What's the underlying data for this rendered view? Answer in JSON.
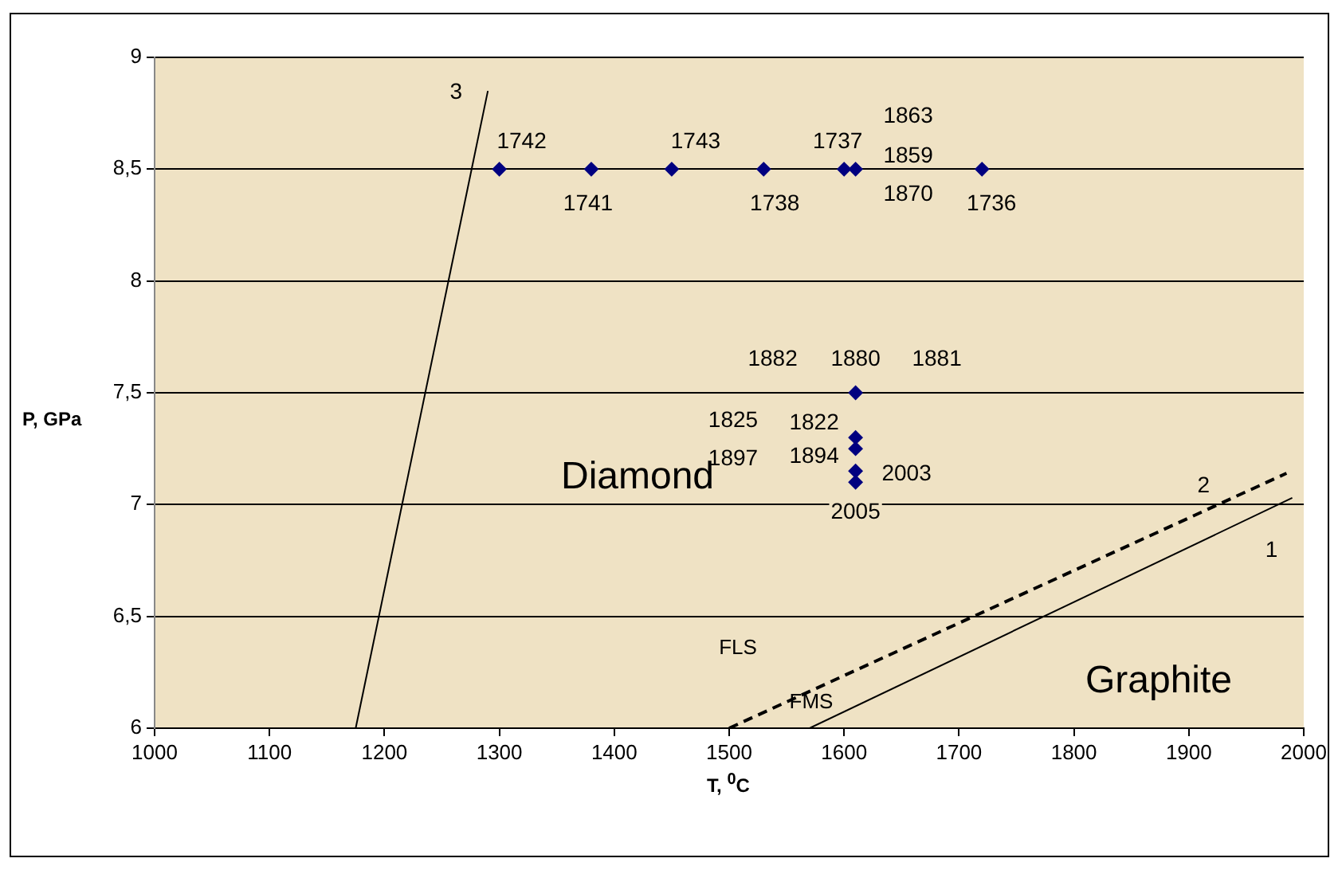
{
  "chart_data": {
    "type": "scatter",
    "xlabel": "T, $^{0}$C",
    "ylabel": "P, GPa",
    "xlim": [
      1000,
      2000
    ],
    "xticks": [
      1000,
      1100,
      1200,
      1300,
      1400,
      1500,
      1600,
      1700,
      1800,
      1900,
      2000
    ],
    "ylim": [
      6,
      9
    ],
    "yticks": [
      6,
      {
        "value": 6.5,
        "label": "6,5"
      },
      7,
      {
        "value": 7.5,
        "label": "7,5"
      },
      8,
      {
        "value": 8.5,
        "label": "8,5"
      },
      9
    ],
    "grid": "y",
    "legend": false,
    "series": [
      {
        "marker": "diamond",
        "color": "#000080",
        "x": [
          1300,
          1380,
          1450,
          1530,
          1600,
          1610,
          1720,
          1610,
          1610,
          1610,
          1610,
          1610
        ],
        "values": [
          8.5,
          8.5,
          8.5,
          8.5,
          8.5,
          8.5,
          8.5,
          7.5,
          7.3,
          7.25,
          7.15,
          7.1
        ]
      },
      {
        "type": "line",
        "name": "1",
        "marker": "none",
        "color": "#000000",
        "line_style": "solid",
        "x": [
          1570,
          1990
        ],
        "values": [
          6,
          7.03
        ]
      },
      {
        "type": "line",
        "name": "2",
        "marker": "none",
        "color": "#000000",
        "line_style": "dashed",
        "x": [
          1500,
          1985
        ],
        "values": [
          6,
          7.14
        ]
      },
      {
        "type": "line",
        "name": "3",
        "marker": "none",
        "color": "#000000",
        "line_style": "solid",
        "x": [
          1175,
          1290
        ],
        "values": [
          6,
          8.85
        ]
      }
    ],
    "annotations": [
      "Diamond",
      "Graphite",
      "FLS",
      "FMS",
      "1825",
      "1897",
      {
        "text": "1742",
        "x": 1300,
        "y": 8.5
      },
      {
        "text": "1741",
        "x": 1380,
        "y": 8.5
      },
      {
        "text": "1743",
        "x": 1450,
        "y": 8.5
      },
      {
        "text": "1738",
        "x": 1530,
        "y": 8.5
      },
      {
        "text": "1737",
        "x": 1600,
        "y": 8.5
      },
      {
        "text": "1863",
        "x": 1610,
        "y": 8.5
      },
      {
        "text": "1859",
        "x": 1610,
        "y": 8.5
      },
      {
        "text": "1870",
        "x": 1610,
        "y": 8.5
      },
      {
        "text": "1736",
        "x": 1720,
        "y": 8.5
      },
      {
        "text": "1882",
        "x": 1610,
        "y": 7.5
      },
      {
        "text": "1880",
        "x": 1610,
        "y": 7.5
      },
      {
        "text": "1881",
        "x": 1610,
        "y": 7.5
      },
      {
        "text": "1822",
        "x": 1610,
        "y": 7.3
      },
      {
        "text": "1894",
        "x": 1610,
        "y": 7.25
      },
      {
        "text": "2003",
        "x": 1610,
        "y": 7.15
      },
      {
        "text": "2005",
        "x": 1610,
        "y": 7.1
      }
    ]
  }
}
